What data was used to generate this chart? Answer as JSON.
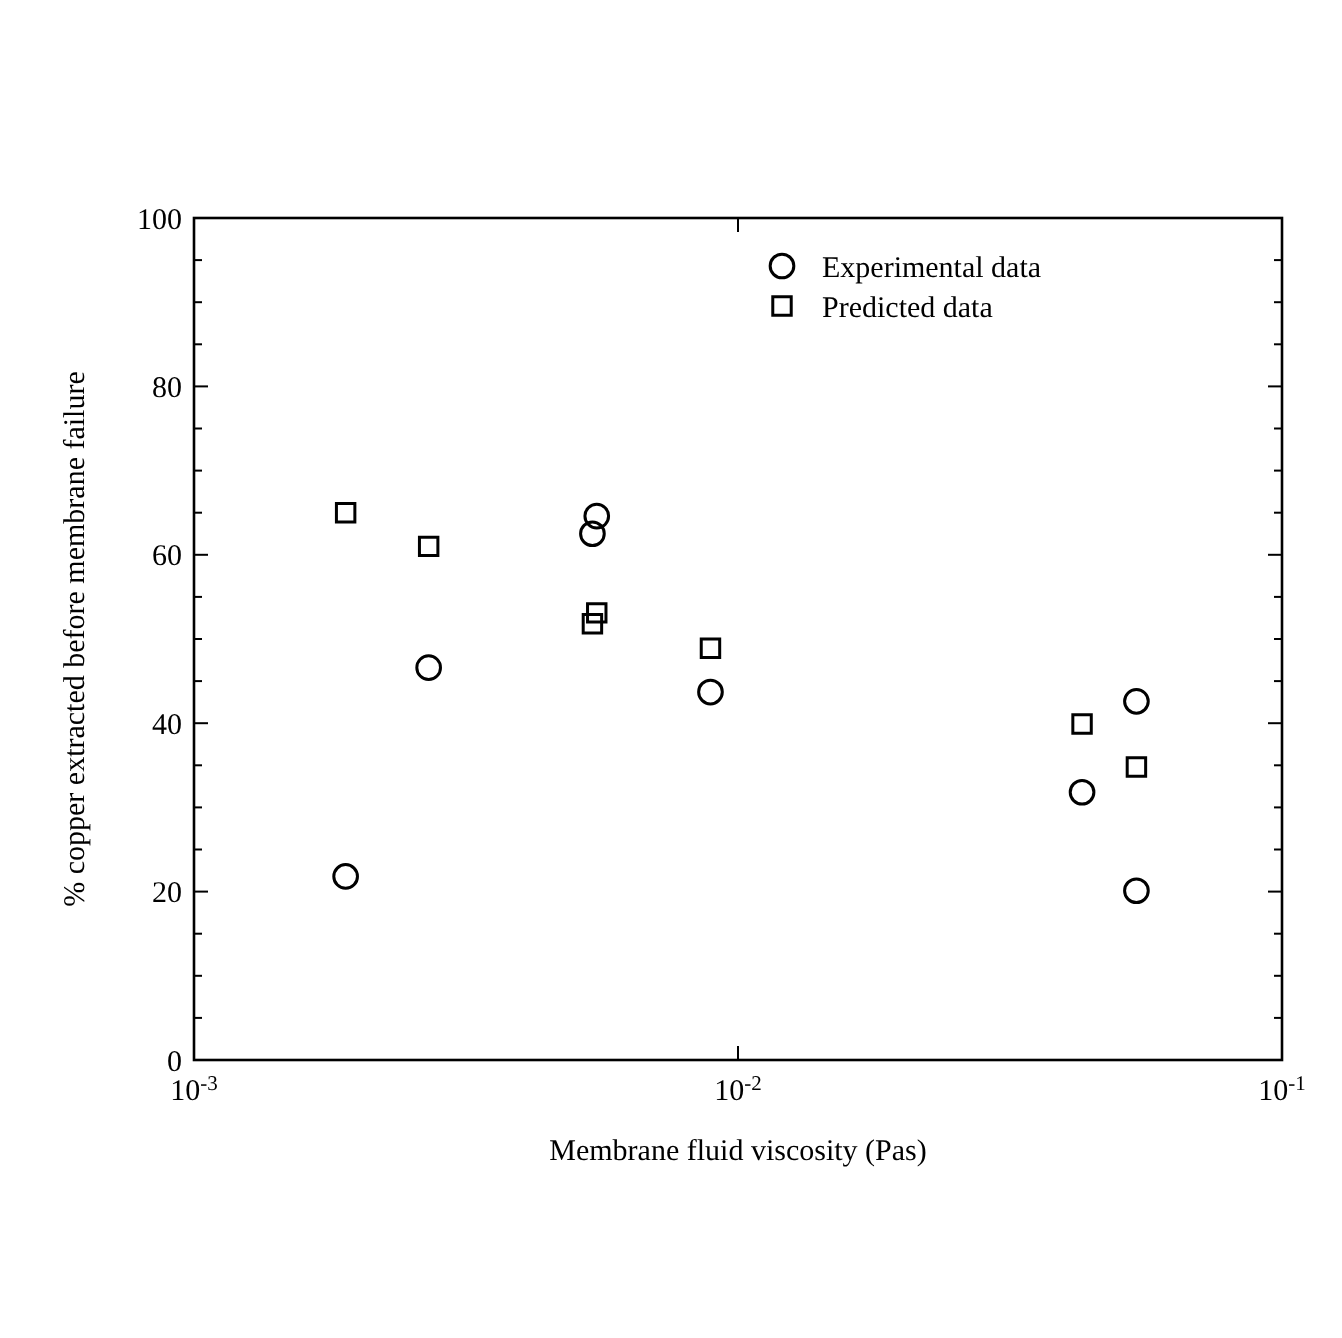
{
  "chart_data": {
    "type": "scatter",
    "xlabel": "Membrane fluid viscosity (Pas)",
    "ylabel": "% copper extracted before membrane failure",
    "log": "x",
    "xlim": [
      0.001,
      0.1
    ],
    "xticks": [
      {
        "value": 0.001,
        "label": "10$^{-3}$"
      },
      {
        "value": 0.01,
        "label": "10$^{-2}$"
      },
      {
        "value": 0.1,
        "label": "10$^{-1}$"
      }
    ],
    "ylim": [
      0,
      100
    ],
    "yticks": [
      0,
      {
        "value": 5,
        "label": null
      },
      {
        "value": 10,
        "label": null
      },
      {
        "value": 15,
        "label": null
      },
      20,
      {
        "value": 25,
        "label": null
      },
      {
        "value": 30,
        "label": null
      },
      {
        "value": 35,
        "label": null
      },
      40,
      {
        "value": 45,
        "label": null
      },
      {
        "value": 50,
        "label": null
      },
      {
        "value": 55,
        "label": null
      },
      60,
      {
        "value": 65,
        "label": null
      },
      {
        "value": 70,
        "label": null
      },
      {
        "value": 75,
        "label": null
      },
      80,
      {
        "value": 85,
        "label": null
      },
      {
        "value": 90,
        "label": null
      },
      {
        "value": 95,
        "label": null
      },
      100
    ],
    "grid": false,
    "legend": "top right",
    "series": [
      {
        "name": "Experimental data",
        "color": "#000000",
        "marker": "circle",
        "x": [
          0.0019,
          0.0027,
          0.0055,
          0.0054,
          0.0089,
          0.0429,
          0.054,
          0.054
        ],
        "values": [
          21.8,
          46.6,
          64.6,
          62.5,
          43.7,
          31.8,
          42.6,
          20.1
        ]
      },
      {
        "name": "Predicted data",
        "color": "#000000",
        "marker": "square",
        "x": [
          0.0019,
          0.0027,
          0.0055,
          0.0054,
          0.0089,
          0.0429,
          0.054
        ],
        "values": [
          65,
          61,
          53.1,
          51.8,
          48.9,
          39.9,
          34.8
        ]
      }
    ]
  }
}
